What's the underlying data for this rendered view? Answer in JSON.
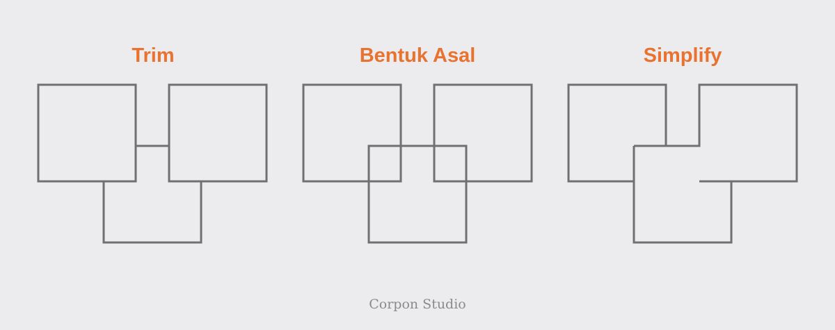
{
  "colors": {
    "background": "#ececee",
    "title": "#e87330",
    "stroke": "#707070",
    "footer": "#8a8a8a"
  },
  "panels": [
    {
      "title": "Trim",
      "operation": "trim"
    },
    {
      "title": "Bentuk Asal",
      "operation": "original"
    },
    {
      "title": "Simplify",
      "operation": "simplify"
    }
  ],
  "footer": "Corpon Studio"
}
